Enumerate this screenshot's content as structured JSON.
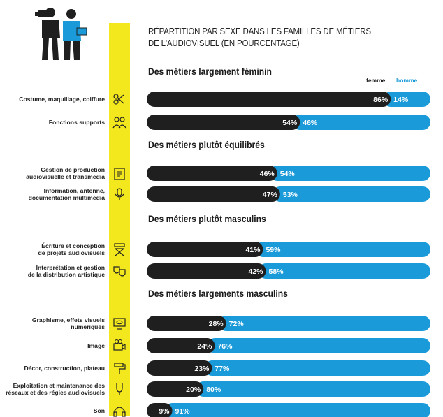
{
  "title_lines": [
    "RÉPARTITION PAR SEXE DANS LES FAMILLES DE MÉTIERS",
    "DE L'AUDIOVISUEL (EN POURCENTAGE)"
  ],
  "legend": {
    "femme": "femme",
    "homme": "homme"
  },
  "colors": {
    "femme": "#1f1f1f",
    "homme": "#1a9ad8",
    "accent": "#f3e81e"
  },
  "groups": [
    {
      "title": "Des métiers largement féminin"
    },
    {
      "title": "Des métiers plutôt équilibrés"
    },
    {
      "title": "Des métiers plutôt masculins"
    },
    {
      "title": "Des métiers largements masculins"
    }
  ],
  "chart_data": {
    "type": "bar",
    "orientation": "horizontal-stacked",
    "title": "RÉPARTITION PAR SEXE DANS LES FAMILLES DE MÉTIERS DE L'AUDIOVISUEL (EN POURCENTAGE)",
    "unit": "%",
    "xlim": [
      0,
      100
    ],
    "categories": [
      "Costume, maquillage, coiffure",
      "Fonctions supports",
      "Gestion de production audiovisuelle et transmedia",
      "Information, antenne, documentation multimedia",
      "Écriture et conception de projets audiovisuels",
      "Interprétation et gestion de la distribution artistique",
      "Graphisme, effets visuels numériques",
      "Image",
      "Décor, construction, plateau",
      "Exploitation et maintenance des réseaux et des régies audiovisuels",
      "Son"
    ],
    "category_lines": [
      [
        "Costume, maquillage, coiffure"
      ],
      [
        "Fonctions supports"
      ],
      [
        "Gestion de production",
        "audiovisuelle et transmedia"
      ],
      [
        "Information, antenne,",
        "documentation multimedia"
      ],
      [
        "Écriture et conception",
        "de projets audiovisuels"
      ],
      [
        "Interprétation et gestion",
        "de la distribution artistique"
      ],
      [
        "Graphisme, effets visuels",
        "numériques"
      ],
      [
        "Image"
      ],
      [
        "Décor, construction, plateau"
      ],
      [
        "Exploitation et maintenance des",
        "réseaux et des régies audiovisuels"
      ],
      [
        "Son"
      ]
    ],
    "icons": [
      "scissors-shirt-icon",
      "people-icon",
      "clipboard-icon",
      "microphone-icon",
      "director-chair-icon",
      "theater-masks-icon",
      "monitor-eye-icon",
      "camera-icon",
      "paint-roller-icon",
      "cables-icon",
      "headphones-icon"
    ],
    "series": [
      {
        "name": "femme",
        "values": [
          86,
          54,
          46,
          47,
          41,
          42,
          28,
          24,
          23,
          20,
          9
        ]
      },
      {
        "name": "homme",
        "values": [
          14,
          46,
          54,
          53,
          59,
          58,
          72,
          76,
          77,
          80,
          91
        ]
      }
    ],
    "labels": {
      "femme": [
        "86%",
        "54%",
        "46%",
        "47%",
        "41%",
        "42%",
        "28%",
        "24%",
        "23%",
        "20%",
        "9%"
      ],
      "homme": [
        "14%",
        "46%",
        "54%",
        "53%",
        "59%",
        "58%",
        "72%",
        "76%",
        "77%",
        "80%",
        "91%"
      ]
    }
  }
}
